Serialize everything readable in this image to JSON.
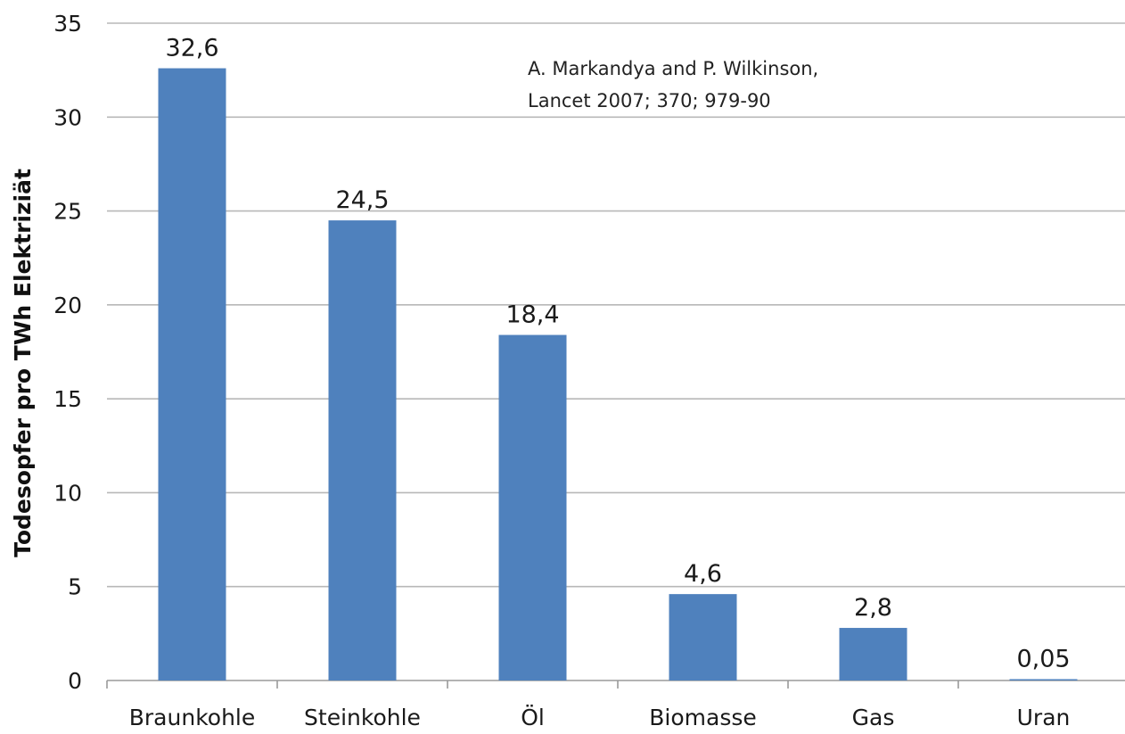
{
  "chart_data": {
    "type": "bar",
    "title": "",
    "xlabel": "",
    "ylabel": "Todesopfer pro TWh Elektriziät",
    "categories": [
      "Braunkohle",
      "Steinkohle",
      "Öl",
      "Biomasse",
      "Gas",
      "Uran"
    ],
    "values": [
      32.6,
      24.5,
      18.4,
      4.6,
      2.8,
      0.05
    ],
    "value_labels": [
      "32,6",
      "24,5",
      "18,4",
      "4,6",
      "2,8",
      "0,05"
    ],
    "ylim": [
      0,
      35
    ],
    "yticks": [
      0,
      5,
      10,
      15,
      20,
      25,
      30,
      35
    ],
    "ytick_labels": [
      "0",
      "5",
      "10",
      "15",
      "20",
      "25",
      "30",
      "35"
    ],
    "grid": true,
    "legend": "none",
    "bar_color": "#4f81bd",
    "annotation": [
      "A. Markandya and P. Wilkinson,",
      "Lancet 2007; 370; 979-90"
    ]
  }
}
